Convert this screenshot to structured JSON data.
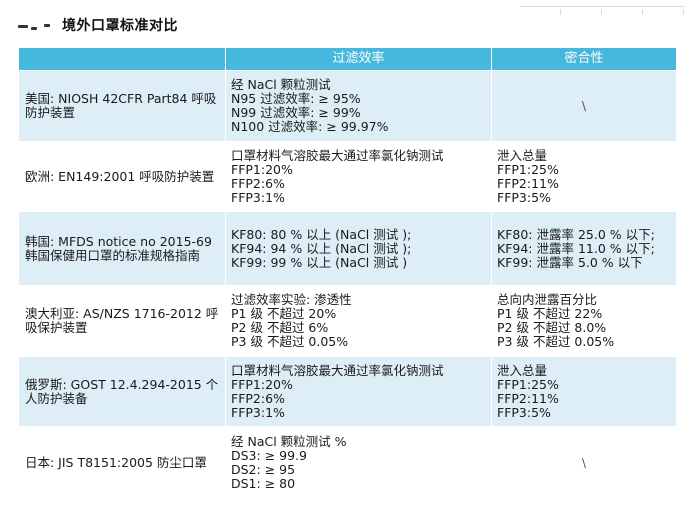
{
  "title": "境外口罩标准对比",
  "columns": {
    "region": "",
    "filtration": "过滤效率",
    "fit": "密合性"
  },
  "rows": [
    {
      "region": "美国: NIOSH 42CFR Part84 呼吸防护装置",
      "filtration": [
        "经 NaCl 颗粒测试",
        "N95 过滤效率: ≥ 95%",
        "N99 过滤效率: ≥ 99%",
        "N100 过滤效率: ≥ 99.97%"
      ],
      "fit": [
        "\\"
      ]
    },
    {
      "region": "欧洲: EN149:2001 呼吸防护装置",
      "filtration": [
        "口罩材料气溶胶最大通过率氯化钠测试",
        "FFP1:20%",
        "FFP2:6%",
        "FFP3:1%"
      ],
      "fit": [
        "泄入总量",
        "FFP1:25%",
        "FFP2:11%",
        "FFP3:5%"
      ]
    },
    {
      "region": "韩国: MFDS notice no 2015-69 韩国保健用口罩的标准规格指南",
      "filtration": [
        "KF80: 80 % 以上 (NaCl 测试 );",
        "KF94: 94 % 以上 (NaCl 测试 );",
        "KF99: 99 % 以上 (NaCl 测试 )"
      ],
      "fit": [
        "KF80: 泄露率 25.0 % 以下;",
        "KF94: 泄露率 11.0 % 以下;",
        "KF99: 泄露率 5.0 % 以下"
      ]
    },
    {
      "region": "澳大利亚: AS/NZS 1716-2012 呼吸保护装置",
      "filtration": [
        "过滤效率实验: 渗透性",
        "P1 级 不超过 20%",
        "P2 级 不超过 6%",
        "P3 级 不超过 0.05%"
      ],
      "fit": [
        "总向内泄露百分比",
        "P1 级 不超过 22%",
        "P2 级 不超过 8.0%",
        "P3 级 不超过 0.05%"
      ]
    },
    {
      "region": "俄罗斯: GOST 12.4.294-2015 个人防护装备",
      "filtration": [
        "口罩材料气溶胶最大通过率氯化钠测试",
        "FFP1:20%",
        "FFP2:6%",
        "FFP3:1%"
      ],
      "fit": [
        "泄入总量",
        "FFP1:25%",
        "FFP2:11%",
        "FFP3:5%"
      ]
    },
    {
      "region": "日本: JIS T8151:2005 防尘口罩",
      "filtration": [
        "经 NaCl 颗粒测试 %",
        "DS3: ≥ 99.9",
        "DS2: ≥ 95",
        "DS1: ≥ 80"
      ],
      "fit": [
        "\\"
      ]
    }
  ]
}
